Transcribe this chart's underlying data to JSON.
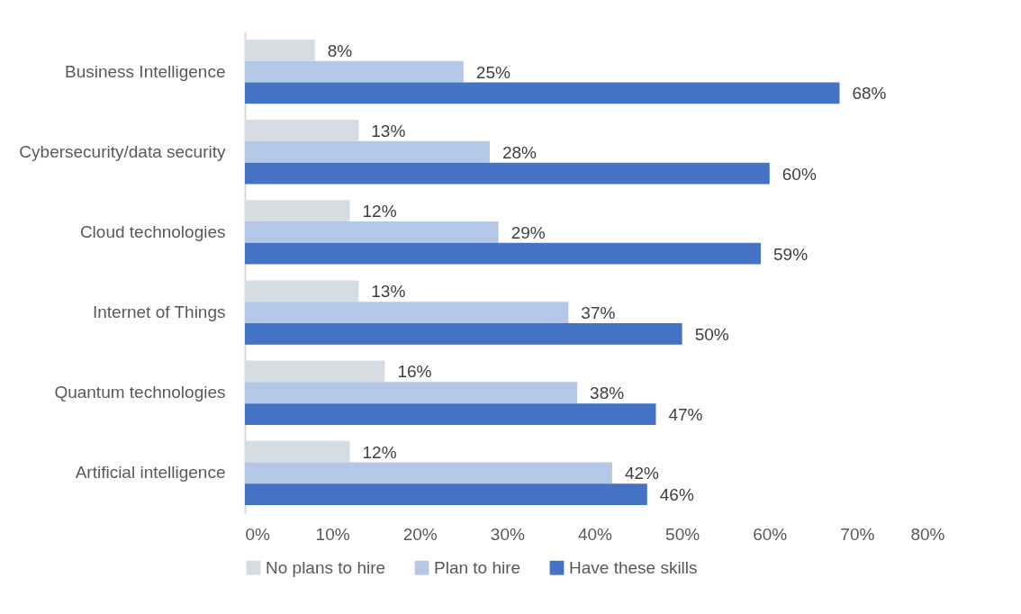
{
  "chart_data": {
    "type": "bar",
    "orientation": "horizontal",
    "categories": [
      "Business Intelligence",
      "Cybersecurity/data security",
      "Cloud technologies",
      "Internet of Things",
      "Quantum technologies",
      "Artificial intelligence"
    ],
    "series": [
      {
        "name": "No plans to hire",
        "color": "#d6dce4",
        "values": [
          8,
          13,
          12,
          13,
          16,
          12
        ],
        "value_labels": [
          "8%",
          "13%",
          "12%",
          "13%",
          "16%",
          "12%"
        ]
      },
      {
        "name": "Plan to hire",
        "color": "#b4c7e7",
        "values": [
          25,
          28,
          29,
          37,
          38,
          42
        ],
        "value_labels": [
          "25%",
          "28%",
          "29%",
          "37%",
          "38%",
          "42%"
        ]
      },
      {
        "name": "Have these skills",
        "color": "#4472c4",
        "values": [
          68,
          60,
          59,
          50,
          47,
          46
        ],
        "value_labels": [
          "68%",
          "60%",
          "59%",
          "50%",
          "47%",
          "46%"
        ]
      }
    ],
    "xlim": [
      0,
      80
    ],
    "xticks": [
      {
        "value": 0,
        "label": "0%"
      },
      {
        "value": 10,
        "label": "10%"
      },
      {
        "value": 20,
        "label": "20%"
      },
      {
        "value": 30,
        "label": "30%"
      },
      {
        "value": 40,
        "label": "40%"
      },
      {
        "value": 50,
        "label": "50%"
      },
      {
        "value": 60,
        "label": "60%"
      },
      {
        "value": 70,
        "label": "70%"
      },
      {
        "value": 80,
        "label": "80%"
      }
    ],
    "legend": "bottom"
  }
}
